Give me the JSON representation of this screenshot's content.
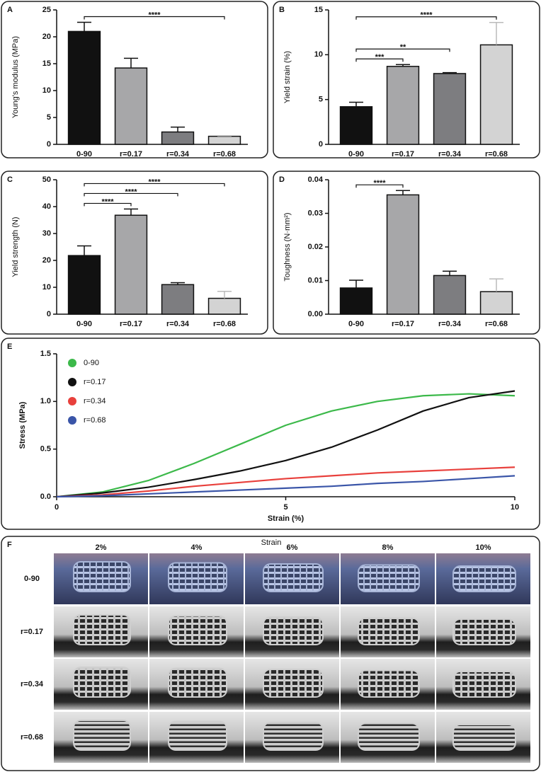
{
  "chart_data": [
    {
      "type": "bar",
      "label": "A",
      "ylabel": "Young's modulus (MPa)",
      "categories": [
        "0-90",
        "r=0.17",
        "r=0.34",
        "r=0.68"
      ],
      "values": [
        21,
        14.2,
        2.3,
        1.5
      ],
      "errors": [
        1.7,
        1.8,
        0.9,
        0.1
      ],
      "colors": [
        "#111111",
        "#a7a7a9",
        "#7d7d80",
        "#d3d3d3"
      ],
      "ylim": [
        0,
        25
      ],
      "yticks": [
        0,
        5,
        10,
        15,
        20,
        25
      ],
      "significance": [
        {
          "pair": [
            "0-90",
            "r=0.68"
          ],
          "label": "****"
        }
      ]
    },
    {
      "type": "bar",
      "label": "B",
      "ylabel": "Yield strain (%)",
      "categories": [
        "0-90",
        "r=0.17",
        "r=0.34",
        "r=0.68"
      ],
      "values": [
        4.2,
        8.7,
        7.9,
        11.1
      ],
      "errors": [
        0.5,
        0.2,
        0.1,
        2.5
      ],
      "colors": [
        "#111111",
        "#a7a7a9",
        "#7d7d80",
        "#d3d3d3"
      ],
      "ylim": [
        0,
        15
      ],
      "yticks": [
        0,
        5,
        10,
        15
      ],
      "significance": [
        {
          "pair": [
            "0-90",
            "r=0.68"
          ],
          "label": "****"
        },
        {
          "pair": [
            "0-90",
            "r=0.34"
          ],
          "label": "**"
        },
        {
          "pair": [
            "0-90",
            "r=0.17"
          ],
          "label": "***"
        }
      ]
    },
    {
      "type": "bar",
      "label": "C",
      "ylabel": "Yield strength (N)",
      "categories": [
        "0-90",
        "r=0.17",
        "r=0.34",
        "r=0.68"
      ],
      "values": [
        21.8,
        36.8,
        11,
        5.9
      ],
      "errors": [
        3.6,
        2.3,
        0.7,
        2.6
      ],
      "colors": [
        "#111111",
        "#a7a7a9",
        "#7d7d80",
        "#d3d3d3"
      ],
      "ylim": [
        0,
        50
      ],
      "yticks": [
        0,
        10,
        20,
        30,
        40,
        50
      ],
      "significance": [
        {
          "pair": [
            "0-90",
            "r=0.68"
          ],
          "label": "****"
        },
        {
          "pair": [
            "0-90",
            "r=0.34"
          ],
          "label": "****"
        },
        {
          "pair": [
            "0-90",
            "r=0.17"
          ],
          "label": "****"
        }
      ]
    },
    {
      "type": "bar",
      "label": "D",
      "ylabel": "Toughness (N·mm²)",
      "categories": [
        "0-90",
        "r=0.17",
        "r=0.34",
        "r=0.68"
      ],
      "values": [
        0.0078,
        0.0355,
        0.0115,
        0.0067
      ],
      "errors": [
        0.0023,
        0.0013,
        0.0013,
        0.0038
      ],
      "colors": [
        "#111111",
        "#a7a7a9",
        "#7d7d80",
        "#d3d3d3"
      ],
      "ylim": [
        0,
        0.04
      ],
      "yticks": [
        {
          "value": 0,
          "label": "0.00"
        },
        0.01,
        0.02,
        0.03,
        0.04
      ],
      "significance": [
        {
          "pair": [
            "0-90",
            "r=0.17"
          ],
          "label": "****"
        }
      ]
    },
    {
      "type": "line",
      "label": "E",
      "xlabel": "Strain (%)",
      "ylabel": "Stress (MPa)",
      "x": [
        0,
        1,
        2,
        3,
        4,
        5,
        6,
        7,
        8,
        9,
        10
      ],
      "series": [
        {
          "name": "0-90",
          "color": "#3cb94a",
          "values": [
            0,
            0.05,
            0.17,
            0.35,
            0.55,
            0.75,
            0.9,
            1.0,
            1.06,
            1.08,
            1.06
          ]
        },
        {
          "name": "r=0.17",
          "color": "#111111",
          "values": [
            0,
            0.04,
            0.1,
            0.18,
            0.27,
            0.38,
            0.52,
            0.7,
            0.9,
            1.04,
            1.11
          ]
        },
        {
          "name": "r=0.34",
          "color": "#e8403c",
          "values": [
            0,
            0.02,
            0.06,
            0.11,
            0.15,
            0.19,
            0.22,
            0.25,
            0.27,
            0.29,
            0.31
          ]
        },
        {
          "name": "r=0.68",
          "color": "#3a55a8",
          "values": [
            0,
            0.01,
            0.03,
            0.05,
            0.07,
            0.09,
            0.11,
            0.14,
            0.16,
            0.19,
            0.22
          ]
        }
      ],
      "xlim": [
        0,
        10
      ],
      "xticks": [
        0,
        5,
        10
      ],
      "ylim": [
        0,
        1.5
      ],
      "yticks": [
        {
          "value": 0,
          "label": "0.0"
        },
        0.5,
        {
          "value": 1,
          "label": "1.0"
        },
        1.5
      ]
    }
  ],
  "photo_grid": {
    "label": "F",
    "title": "Strain",
    "columns": [
      "2%",
      "4%",
      "6%",
      "8%",
      "10%"
    ],
    "rows": [
      "0-90",
      "r=0.17",
      "r=0.34",
      "r=0.68"
    ]
  }
}
